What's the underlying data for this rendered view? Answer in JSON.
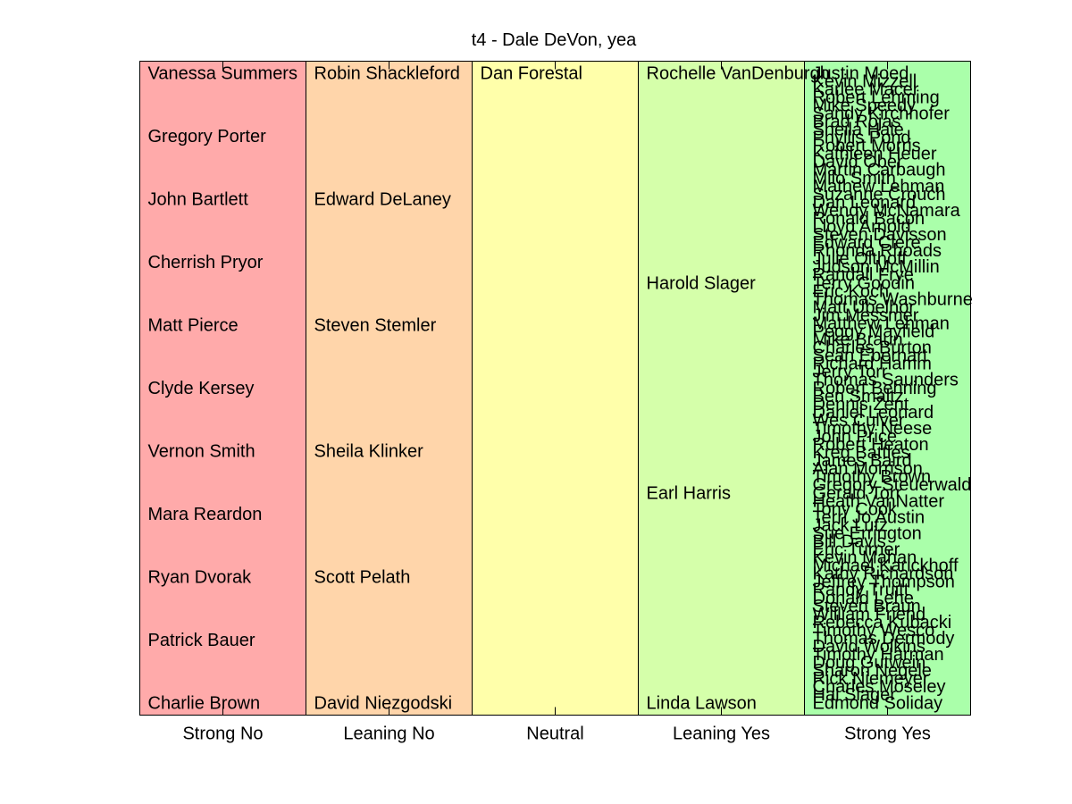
{
  "chart_data": {
    "type": "table",
    "title": "t4 - Dale DeVon, yea",
    "categories": [
      "Strong No",
      "Leaning No",
      "Neutral",
      "Leaning Yes",
      "Strong Yes"
    ],
    "colors": [
      "#ffaaaa",
      "#ffd5aa",
      "#ffffaa",
      "#d5ffaa",
      "#aaffaa"
    ],
    "columns": [
      {
        "category": "Strong No",
        "names": [
          "Vanessa Summers",
          "Gregory Porter",
          "John Bartlett",
          "Cherrish Pryor",
          "Matt Pierce",
          "Clyde Kersey",
          "Vernon Smith",
          "Mara Reardon",
          "Ryan Dvorak",
          "Patrick Bauer",
          "Charlie Brown"
        ]
      },
      {
        "category": "Leaning No",
        "names": [
          "Robin Shackleford",
          "Edward DeLaney",
          "Steven Stemler",
          "Sheila Klinker",
          "Scott Pelath",
          "David Niezgodski"
        ]
      },
      {
        "category": "Neutral",
        "names": [
          "Dan Forestal"
        ]
      },
      {
        "category": "Leaning Yes",
        "names": [
          "Rochelle VanDenburgh",
          "Harold Slager",
          "Earl Harris",
          "Linda Lawson"
        ]
      },
      {
        "category": "Strong Yes",
        "names": [
          "Justin Moed",
          "Kevin Mizzell",
          "Karlee Macer",
          "Robert Lehming",
          "Mike Speedy",
          "Sandy Kirchhofer",
          "Brad Rojas",
          "Sheila Hale",
          "Phyllis Pond",
          "Robert Morris",
          "Kathleen Heuer",
          "David Ober",
          "Martin Carbaugh",
          "Milo Smith",
          "Mathew Lehman",
          "Suzanne Crouch",
          "Dan Leonard",
          "Wendy McNamara",
          "Ronald Bacon",
          "Lloyd Arnold",
          "Steven Davisson",
          "Edward Clere",
          "Rhonda Rhoads",
          "Julie Olthoff",
          "Judson McMillin",
          "Randall Frye",
          "Terry Goodin",
          "Eric Koch",
          "Thomas Washburne",
          "Matt Ubelhor",
          "Jim Messmer",
          "Matthew Lehman",
          "Peggy Mayfield",
          "Mike Braun",
          "Charles Burton",
          "Sean Eberhart",
          "Richard Hamm",
          "Jerry Torr",
          "Thomas Saunders",
          "Robert Behning",
          "Ben Smaltz",
          "Dennis Zent",
          "Daniel Leonard",
          "Wes Culver",
          "Timothy Neese",
          "John Price",
          "Robert Heaton",
          "Kreg Battles",
          "James Baird",
          "Alan Morrison",
          "Timothy Brown",
          "Gregory Steuerwald",
          "Gerald Torr",
          "Heath VanNatter",
          "Tony Cook",
          "Terri Jo Austin",
          "Jack Lutz",
          "Sue Errington",
          "Bill Davis",
          "Eric Turner",
          "Kevin Mahan",
          "Michael Karickhoff",
          "Kathy Richardson",
          "Jeffrey Thompson",
          "Randy Truitt",
          "Donald Lehe",
          "Steven Braun",
          "William Friend",
          "Rebecca Kubacki",
          "Timothy Wesco",
          "Thomas Dermody",
          "David Wolkins",
          "Timothy Harman",
          "Doug Gutwein",
          "Sharon Negele",
          "Rick Niemeyer",
          "Charles Moseley",
          "Hal Slager",
          "Edmond Soliday"
        ]
      }
    ]
  }
}
